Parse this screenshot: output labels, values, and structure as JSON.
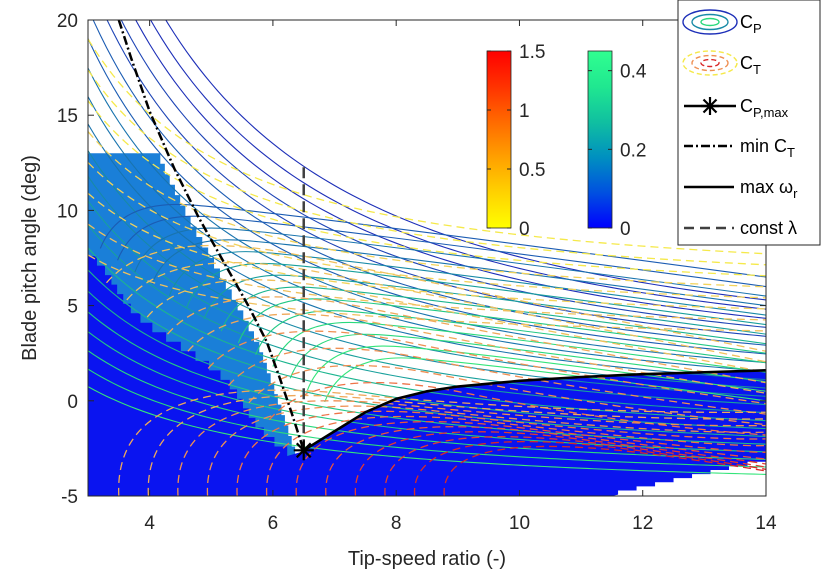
{
  "chart_data": {
    "type": "contour",
    "xlabel": "Tip-speed ratio (-)",
    "ylabel": "Blade pitch angle (deg)",
    "xlim": [
      3,
      14
    ],
    "ylim": [
      -5,
      20
    ],
    "xticks": [
      {
        "value": 4,
        "label": "4"
      },
      {
        "value": 6,
        "label": "6"
      },
      {
        "value": 8,
        "label": "8"
      },
      {
        "value": 10,
        "label": "10"
      },
      {
        "value": 12,
        "label": "12"
      },
      {
        "value": 14,
        "label": "14"
      }
    ],
    "yticks": [
      {
        "value": -5,
        "label": "-5"
      },
      {
        "value": 0,
        "label": "0"
      },
      {
        "value": 5,
        "label": "5"
      },
      {
        "value": 10,
        "label": "10"
      },
      {
        "value": 15,
        "label": "15"
      },
      {
        "value": 20,
        "label": "20"
      }
    ],
    "colorbar_ct": {
      "name": "C_T",
      "range": [
        0,
        1.5
      ],
      "ticks": [
        {
          "value": 0,
          "label": "0"
        },
        {
          "value": 0.5,
          "label": "0.5"
        },
        {
          "value": 1,
          "label": "1"
        },
        {
          "value": 1.5,
          "label": "1.5"
        }
      ],
      "colors": [
        "#ffff00",
        "#ffd200",
        "#ffa000",
        "#ff6a00",
        "#ff3200",
        "#ff0000"
      ]
    },
    "colorbar_cp": {
      "name": "C_P",
      "range": [
        0,
        0.45
      ],
      "ticks": [
        {
          "value": 0,
          "label": "0"
        },
        {
          "value": 0.2,
          "label": "0.2"
        },
        {
          "value": 0.4,
          "label": "0.4"
        }
      ],
      "colors": [
        "#0000ff",
        "#0050e0",
        "#0090c0",
        "#10c0a0",
        "#20e890",
        "#30ff90"
      ]
    },
    "cp_max_point": {
      "x": 6.5,
      "y": -2.6
    },
    "min_ct_curve": {
      "x": [
        3.5,
        3.7,
        4.0,
        4.4,
        4.8,
        5.2,
        5.6,
        5.9,
        6.1,
        6.3,
        6.5
      ],
      "y": [
        20,
        18,
        15.2,
        12.2,
        9.6,
        7.3,
        5.0,
        3.1,
        1.3,
        -0.6,
        -2.6
      ]
    },
    "max_omega_curve": {
      "x": [
        6.5,
        7.0,
        7.5,
        8.0,
        8.5,
        9.0,
        10.0,
        11.0,
        12.0,
        13.0,
        14.0
      ],
      "y": [
        -2.6,
        -1.6,
        -0.6,
        0.1,
        0.5,
        0.75,
        1.05,
        1.25,
        1.4,
        1.5,
        1.6
      ]
    },
    "const_lambda_line": {
      "x": 6.5,
      "y_from": -2.6,
      "y_to": 12.3
    },
    "legend": {
      "items": [
        {
          "id": "cp",
          "label": "C",
          "sub": "P"
        },
        {
          "id": "ct",
          "label": "C",
          "sub": "T"
        },
        {
          "id": "cpmax",
          "label": "C",
          "sub": "P,max"
        },
        {
          "id": "minct",
          "label": "min C",
          "sub": "T"
        },
        {
          "id": "maxw",
          "label": "max ω",
          "sub": "r"
        },
        {
          "id": "constl",
          "label": "const λ",
          "sub": ""
        }
      ]
    }
  }
}
